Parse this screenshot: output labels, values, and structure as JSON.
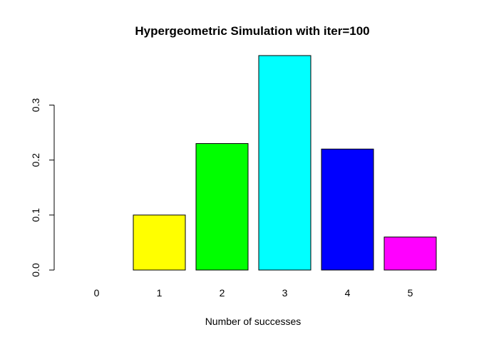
{
  "chart_data": {
    "type": "bar",
    "title": "Hypergeometric Simulation with iter=100",
    "xlabel": "Number of successes",
    "ylabel": "",
    "categories": [
      "0",
      "1",
      "2",
      "3",
      "4",
      "5"
    ],
    "values": [
      0.0,
      0.1,
      0.23,
      0.39,
      0.22,
      0.06
    ],
    "colors": [
      "#FF0000",
      "#FFFF00",
      "#00FF00",
      "#00FFFF",
      "#0000FF",
      "#FF00FF"
    ],
    "yticks": [
      0.0,
      0.1,
      0.2,
      0.3
    ],
    "ytick_labels": [
      "0.0",
      "0.1",
      "0.2",
      "0.3"
    ],
    "ylim": [
      0,
      0.39
    ],
    "grid": false,
    "legend": "none"
  }
}
